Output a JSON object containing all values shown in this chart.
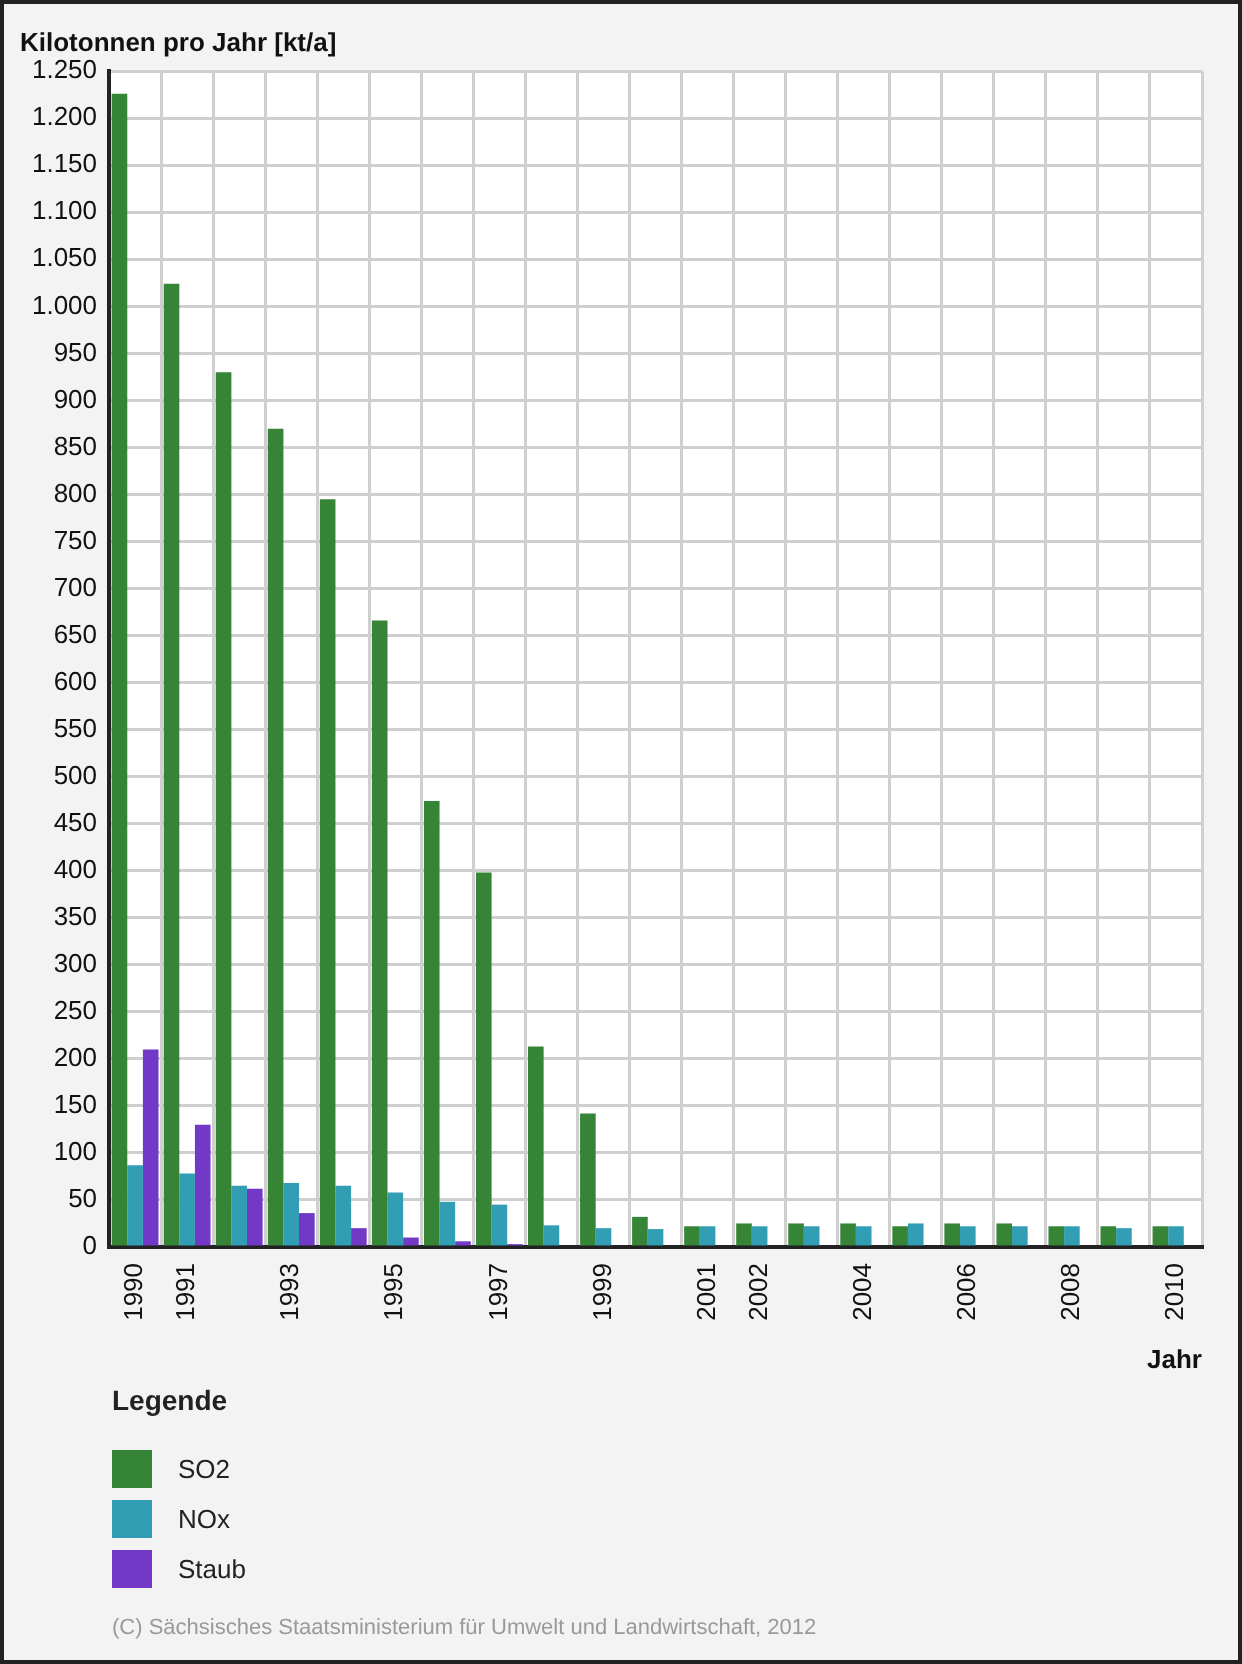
{
  "chart_data": {
    "type": "bar",
    "title": "Kilotonnen pro Jahr [kt/a]",
    "xlabel": "Jahr",
    "legend_title": "Legende",
    "categories": [
      "1990",
      "1991",
      null,
      "1993",
      null,
      "1995",
      null,
      "1997",
      null,
      "1999",
      null,
      "2001",
      "2002",
      null,
      "2004",
      null,
      "2006",
      null,
      "2008",
      null,
      "2010"
    ],
    "series": [
      {
        "name": "SO2",
        "color": "#368436",
        "values": [
          1226,
          1024,
          930,
          870,
          795,
          666,
          474,
          398,
          213,
          142,
          32,
          22,
          25,
          25,
          25,
          22,
          25,
          25,
          22,
          22,
          22
        ]
      },
      {
        "name": "NOx",
        "color": "#329eb4",
        "values": [
          87,
          78,
          65,
          68,
          65,
          58,
          48,
          45,
          23,
          20,
          19,
          22,
          22,
          22,
          22,
          25,
          22,
          22,
          22,
          20,
          22
        ]
      },
      {
        "name": "Staub",
        "color": "#7139c6",
        "values": [
          210,
          130,
          62,
          36,
          20,
          10,
          6,
          3,
          null,
          null,
          null,
          null,
          null,
          null,
          null,
          null,
          null,
          null,
          null,
          null,
          null
        ]
      }
    ],
    "ylim": [
      0,
      1250
    ],
    "yticks": [
      0,
      50,
      100,
      150,
      200,
      250,
      300,
      350,
      400,
      450,
      500,
      550,
      600,
      650,
      700,
      750,
      800,
      850,
      900,
      950,
      {
        "value": 1000,
        "label": "1.000"
      },
      {
        "value": 1050,
        "label": "1.050"
      },
      {
        "value": 1100,
        "label": "1.100"
      },
      {
        "value": 1150,
        "label": "1.150"
      },
      {
        "value": 1200,
        "label": "1.200"
      },
      {
        "value": 1250,
        "label": "1.250"
      }
    ],
    "grid": true,
    "legend": "bottom left",
    "annotations": [
      "(C) Sächsisches Staatsministerium für Umwelt und Landwirtschaft, 2012"
    ]
  }
}
